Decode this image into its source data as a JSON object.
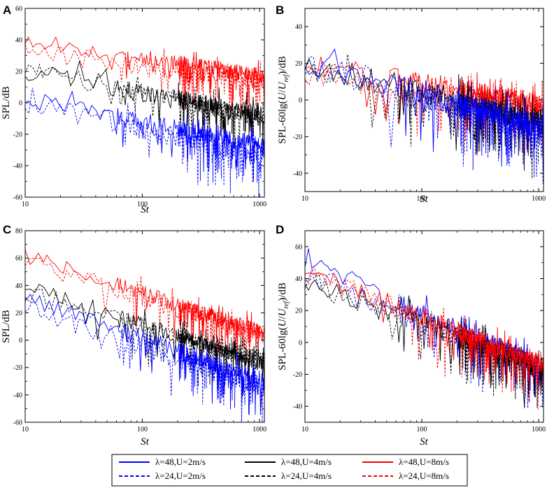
{
  "figure": {
    "legend": [
      {
        "key": "l48_2",
        "label": "λ=48,U=2m/s",
        "color": "#0000ff",
        "dash": false
      },
      {
        "key": "l48_4",
        "label": "λ=48,U=4m/s",
        "color": "#000000",
        "dash": false
      },
      {
        "key": "l48_8",
        "label": "λ=48,U=8m/s",
        "color": "#ff0000",
        "dash": false
      },
      {
        "key": "l24_2",
        "label": "λ=24,U=2m/s",
        "color": "#0000ff",
        "dash": true
      },
      {
        "key": "l24_4",
        "label": "λ=24,U=4m/s",
        "color": "#000000",
        "dash": true
      },
      {
        "key": "l24_8",
        "label": "λ=24,U=8m/s",
        "color": "#ff0000",
        "dash": true
      }
    ]
  },
  "chart_data": [
    {
      "panel": "A",
      "type": "line",
      "xlabel": "St",
      "ylabel": "SPL/dB",
      "xscale": "log",
      "xlim": [
        10,
        1100
      ],
      "ylim": [
        -60,
        60
      ],
      "xticks": [
        10,
        100,
        1000
      ],
      "xticklabels": [
        "10",
        "100",
        "1000"
      ],
      "yticks": [
        -60,
        -40,
        -20,
        0,
        20,
        40,
        60
      ],
      "series": [
        {
          "key": "l48_8",
          "start": 40,
          "end": 17,
          "noise": 5,
          "seed": 11
        },
        {
          "key": "l24_8",
          "start": 33,
          "end": 14,
          "noise": 6,
          "seed": 12
        },
        {
          "key": "l48_4",
          "start": 20,
          "end": -8,
          "noise": 6,
          "seed": 13
        },
        {
          "key": "l24_4",
          "start": 22,
          "end": -10,
          "noise": 6,
          "seed": 14
        },
        {
          "key": "l48_2",
          "start": 3,
          "end": -28,
          "noise": 6,
          "seed": 15
        },
        {
          "key": "l24_2",
          "start": 0,
          "end": -33,
          "noise": 7,
          "seed": 16
        }
      ]
    },
    {
      "panel": "B",
      "type": "line",
      "xlabel": "St",
      "ylabel": "SPL-60lg(U/Uref)/dB",
      "xscale": "log",
      "xlim": [
        10,
        1100
      ],
      "ylim": [
        -50,
        50
      ],
      "xticks": [
        10,
        100,
        1000
      ],
      "xticklabels": [
        "10",
        "100",
        "1000"
      ],
      "yticks": [
        -40,
        -20,
        0,
        20,
        40
      ],
      "series": [
        {
          "key": "l48_8",
          "start": 20,
          "end": -2,
          "noise": 6,
          "seed": 21
        },
        {
          "key": "l24_8",
          "start": 15,
          "end": -5,
          "noise": 7,
          "seed": 22
        },
        {
          "key": "l48_4",
          "start": 20,
          "end": -12,
          "noise": 7,
          "seed": 23
        },
        {
          "key": "l24_4",
          "start": 18,
          "end": -14,
          "noise": 7,
          "seed": 24
        },
        {
          "key": "l48_2",
          "start": 21,
          "end": -15,
          "noise": 7,
          "seed": 25
        },
        {
          "key": "l24_2",
          "start": 21,
          "end": -18,
          "noise": 8,
          "seed": 26
        }
      ]
    },
    {
      "panel": "C",
      "type": "line",
      "xlabel": "St",
      "ylabel": "SPL/dB",
      "xscale": "log",
      "xlim": [
        10,
        1100
      ],
      "ylim": [
        -60,
        80
      ],
      "xticks": [
        10,
        100,
        1000
      ],
      "xticklabels": [
        "10",
        "100",
        "1000"
      ],
      "yticks": [
        -60,
        -40,
        -20,
        0,
        20,
        40,
        60,
        80
      ],
      "series": [
        {
          "key": "l48_8",
          "start": 62,
          "end": 5,
          "noise": 6,
          "seed": 31
        },
        {
          "key": "l24_8",
          "start": 58,
          "end": 3,
          "noise": 7,
          "seed": 32
        },
        {
          "key": "l48_4",
          "start": 40,
          "end": -18,
          "noise": 6,
          "seed": 33
        },
        {
          "key": "l24_4",
          "start": 35,
          "end": -15,
          "noise": 7,
          "seed": 34
        },
        {
          "key": "l48_2",
          "start": 32,
          "end": -30,
          "noise": 7,
          "seed": 35
        },
        {
          "key": "l24_2",
          "start": 25,
          "end": -35,
          "noise": 8,
          "seed": 36
        }
      ]
    },
    {
      "panel": "D",
      "type": "line",
      "xlabel": "St",
      "ylabel": "SPL-60lg(U/Uref)/dB",
      "xscale": "log",
      "xlim": [
        10,
        1100
      ],
      "ylim": [
        -50,
        70
      ],
      "xticks": [
        10,
        100,
        1000
      ],
      "xticklabels": [
        "10",
        "100",
        "1000"
      ],
      "yticks": [
        -40,
        -20,
        0,
        20,
        40,
        60
      ],
      "series": [
        {
          "key": "l48_2",
          "start": 50,
          "end": -15,
          "noise": 6,
          "seed": 41
        },
        {
          "key": "l24_2",
          "start": 42,
          "end": -18,
          "noise": 7,
          "seed": 42
        },
        {
          "key": "l48_4",
          "start": 40,
          "end": -18,
          "noise": 7,
          "seed": 43
        },
        {
          "key": "l24_4",
          "start": 37,
          "end": -16,
          "noise": 7,
          "seed": 44
        },
        {
          "key": "l48_8",
          "start": 46,
          "end": -14,
          "noise": 6,
          "seed": 45
        },
        {
          "key": "l24_8",
          "start": 44,
          "end": -16,
          "noise": 7,
          "seed": 46
        }
      ]
    }
  ]
}
